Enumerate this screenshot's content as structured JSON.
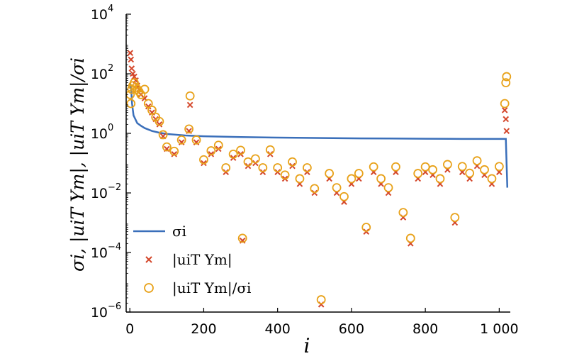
{
  "chart_data": {
    "type": "scatter",
    "xlabel": "i",
    "ylabel": "σi, |uiT Ym|, |uiT Ym|/σi",
    "xlim": [
      -10,
      1030
    ],
    "ylim_log10": [
      -6,
      4
    ],
    "log_y": true,
    "x_ticks": [
      0,
      200,
      400,
      600,
      800,
      1000
    ],
    "x_tick_labels": [
      "0",
      "200",
      "400",
      "600",
      "800",
      "1 000"
    ],
    "y_ticks_log10": [
      -6,
      -4,
      -2,
      0,
      2,
      4
    ],
    "y_tick_labels": [
      {
        "base": "10",
        "exp": "−6"
      },
      {
        "base": "10",
        "exp": "−4"
      },
      {
        "base": "10",
        "exp": "−2"
      },
      {
        "base": "10",
        "exp": "0"
      },
      {
        "base": "10",
        "exp": "2"
      },
      {
        "base": "10",
        "exp": "4"
      }
    ],
    "grid": false,
    "legend_position": "bottom-left",
    "series": [
      {
        "name": "σi",
        "marker": "line",
        "color": "#3a6fba",
        "x": [
          0,
          3,
          6,
          10,
          20,
          30,
          40,
          60,
          80,
          100,
          150,
          200,
          300,
          400,
          500,
          600,
          700,
          800,
          900,
          1000,
          1018,
          1022
        ],
        "y": [
          50,
          40,
          10,
          4,
          2.2,
          1.8,
          1.5,
          1.2,
          1.05,
          0.95,
          0.85,
          0.8,
          0.75,
          0.72,
          0.7,
          0.68,
          0.67,
          0.66,
          0.65,
          0.65,
          0.65,
          0.015
        ]
      },
      {
        "name": "|uiT Ym|",
        "marker": "x",
        "color": "#d4472b",
        "x": [
          1,
          3,
          5,
          8,
          12,
          16,
          20,
          25,
          30,
          40,
          50,
          60,
          70,
          80,
          90,
          100,
          120,
          140,
          160,
          163,
          180,
          200,
          220,
          240,
          260,
          280,
          300,
          305,
          320,
          340,
          360,
          380,
          400,
          420,
          440,
          460,
          480,
          500,
          518,
          540,
          560,
          580,
          600,
          620,
          640,
          660,
          680,
          700,
          720,
          740,
          760,
          780,
          800,
          820,
          840,
          860,
          880,
          900,
          920,
          940,
          960,
          980,
          1000,
          1015,
          1018,
          1020
        ],
        "y": [
          500,
          300,
          150,
          100,
          80,
          60,
          40,
          30,
          20,
          15,
          8,
          5,
          3,
          2,
          0.8,
          0.3,
          0.2,
          0.5,
          1.2,
          9,
          0.5,
          0.1,
          0.2,
          0.3,
          0.05,
          0.15,
          0.2,
          0.00025,
          0.08,
          0.1,
          0.05,
          0.2,
          0.05,
          0.03,
          0.08,
          0.02,
          0.05,
          0.01,
          1.8e-06,
          0.03,
          0.01,
          0.005,
          0.02,
          0.03,
          0.0005,
          0.05,
          0.02,
          0.01,
          0.05,
          0.0015,
          0.0002,
          0.03,
          0.05,
          0.04,
          0.02,
          0.06,
          0.001,
          0.05,
          0.03,
          0.08,
          0.04,
          0.02,
          0.05,
          6,
          3,
          1.2
        ]
      },
      {
        "name": "|uiT Ym|/σi",
        "marker": "circle",
        "color": "#e8a21a",
        "x": [
          1,
          3,
          5,
          8,
          12,
          16,
          20,
          25,
          30,
          40,
          50,
          60,
          70,
          80,
          90,
          100,
          120,
          140,
          160,
          163,
          180,
          200,
          220,
          240,
          260,
          280,
          300,
          305,
          320,
          340,
          360,
          380,
          400,
          420,
          440,
          460,
          480,
          500,
          518,
          540,
          560,
          580,
          600,
          620,
          640,
          660,
          680,
          700,
          720,
          740,
          760,
          780,
          800,
          820,
          840,
          860,
          880,
          900,
          920,
          940,
          960,
          980,
          1000,
          1015,
          1018,
          1020
        ],
        "y": [
          20,
          10,
          30,
          40,
          50,
          35,
          30,
          25,
          20,
          30,
          10,
          6,
          3.5,
          2.5,
          0.9,
          0.35,
          0.25,
          0.6,
          1.4,
          18,
          0.6,
          0.13,
          0.26,
          0.4,
          0.07,
          0.2,
          0.27,
          0.0003,
          0.11,
          0.14,
          0.07,
          0.28,
          0.07,
          0.04,
          0.11,
          0.03,
          0.07,
          0.014,
          2.6e-06,
          0.045,
          0.015,
          0.0075,
          0.03,
          0.045,
          0.0007,
          0.075,
          0.03,
          0.015,
          0.075,
          0.0022,
          0.0003,
          0.045,
          0.075,
          0.06,
          0.03,
          0.09,
          0.0015,
          0.077,
          0.046,
          0.12,
          0.06,
          0.03,
          0.077,
          10,
          50,
          80
        ]
      }
    ]
  }
}
